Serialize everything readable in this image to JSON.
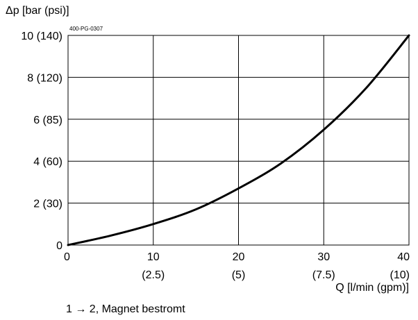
{
  "chart_data": {
    "type": "line",
    "code": "400-PG-0307",
    "ylabel": "Δp [bar (psi)]",
    "xlabel": "Q [l/min (gpm)]",
    "caption": "1 → 2, Magnet bestromt",
    "xlim": [
      0,
      40
    ],
    "ylim": [
      0,
      10
    ],
    "grid": true,
    "x_ticks": [
      {
        "value": 0,
        "label": "0",
        "sub": ""
      },
      {
        "value": 10,
        "label": "10",
        "sub": "(2.5)"
      },
      {
        "value": 20,
        "label": "20",
        "sub": "(5)"
      },
      {
        "value": 30,
        "label": "30",
        "sub": "(7.5)"
      },
      {
        "value": 40,
        "label": "40",
        "sub": "(10)"
      }
    ],
    "y_ticks": [
      {
        "value": 0,
        "label": "0"
      },
      {
        "value": 2,
        "label": "2 (30)"
      },
      {
        "value": 4,
        "label": "4 (60)"
      },
      {
        "value": 6,
        "label": "6 (85)"
      },
      {
        "value": 8,
        "label": "8 (120)"
      },
      {
        "value": 10,
        "label": "10 (140)"
      }
    ],
    "series": [
      {
        "x": [
          0,
          5,
          10,
          15,
          20,
          25,
          30,
          35,
          40
        ],
        "y": [
          0,
          0.45,
          1.0,
          1.7,
          2.7,
          3.9,
          5.5,
          7.5,
          10.0
        ]
      }
    ]
  }
}
